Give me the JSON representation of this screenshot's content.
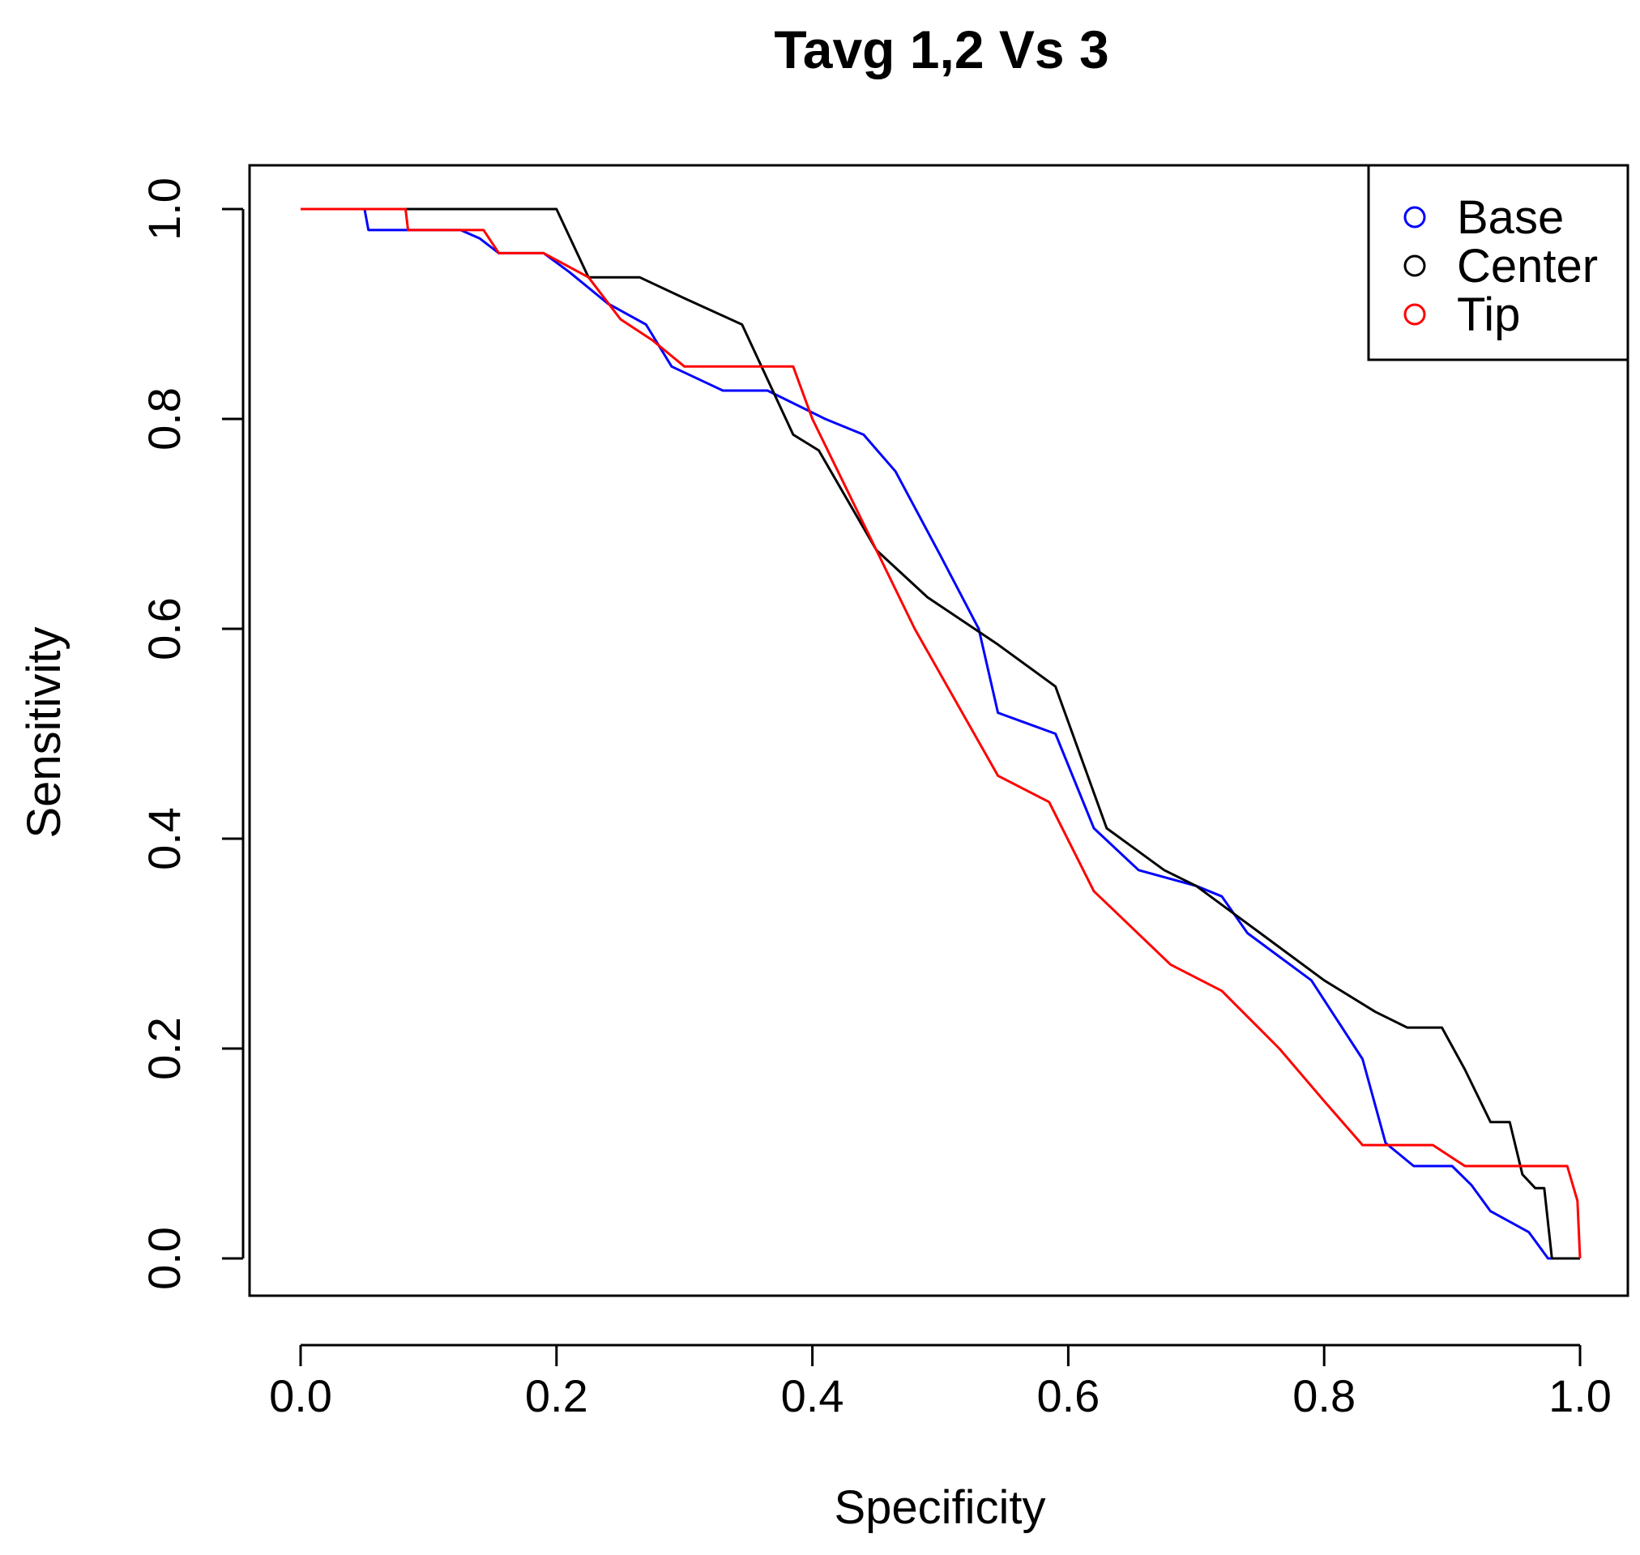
{
  "chart_data": {
    "type": "line",
    "title": "Tavg 1,2 Vs 3",
    "xlabel": "Specificity",
    "ylabel": "Sensitivity",
    "xlim": [
      0.0,
      1.0
    ],
    "ylim": [
      0.0,
      1.0
    ],
    "x_ticks": [
      "0.0",
      "0.2",
      "0.4",
      "0.6",
      "0.8",
      "1.0"
    ],
    "y_ticks": [
      "0.0",
      "0.2",
      "0.4",
      "0.6",
      "0.8",
      "1.0"
    ],
    "grid": false,
    "legend_position": "top-right",
    "series": [
      {
        "name": "Base",
        "color": "#0000ff",
        "points": [
          [
            0.0,
            1.0
          ],
          [
            0.05,
            1.0
          ],
          [
            0.053,
            0.98
          ],
          [
            0.125,
            0.98
          ],
          [
            0.14,
            0.972
          ],
          [
            0.155,
            0.958
          ],
          [
            0.19,
            0.958
          ],
          [
            0.21,
            0.94
          ],
          [
            0.24,
            0.91
          ],
          [
            0.27,
            0.89
          ],
          [
            0.29,
            0.85
          ],
          [
            0.33,
            0.827
          ],
          [
            0.365,
            0.827
          ],
          [
            0.41,
            0.8
          ],
          [
            0.44,
            0.785
          ],
          [
            0.465,
            0.75
          ],
          [
            0.5,
            0.67
          ],
          [
            0.53,
            0.6
          ],
          [
            0.545,
            0.52
          ],
          [
            0.59,
            0.5
          ],
          [
            0.62,
            0.41
          ],
          [
            0.655,
            0.37
          ],
          [
            0.7,
            0.355
          ],
          [
            0.72,
            0.345
          ],
          [
            0.74,
            0.31
          ],
          [
            0.79,
            0.265
          ],
          [
            0.83,
            0.19
          ],
          [
            0.848,
            0.11
          ],
          [
            0.87,
            0.088
          ],
          [
            0.9,
            0.088
          ],
          [
            0.915,
            0.07
          ],
          [
            0.93,
            0.045
          ],
          [
            0.96,
            0.025
          ],
          [
            0.975,
            0.0
          ],
          [
            1.0,
            0.0
          ]
        ]
      },
      {
        "name": "Center",
        "color": "#000000",
        "points": [
          [
            0.0,
            1.0
          ],
          [
            0.2,
            1.0
          ],
          [
            0.225,
            0.935
          ],
          [
            0.265,
            0.935
          ],
          [
            0.3,
            0.915
          ],
          [
            0.345,
            0.89
          ],
          [
            0.385,
            0.785
          ],
          [
            0.405,
            0.77
          ],
          [
            0.45,
            0.675
          ],
          [
            0.49,
            0.63
          ],
          [
            0.545,
            0.585
          ],
          [
            0.59,
            0.545
          ],
          [
            0.63,
            0.41
          ],
          [
            0.675,
            0.37
          ],
          [
            0.7,
            0.355
          ],
          [
            0.75,
            0.31
          ],
          [
            0.8,
            0.265
          ],
          [
            0.84,
            0.235
          ],
          [
            0.865,
            0.22
          ],
          [
            0.892,
            0.22
          ],
          [
            0.91,
            0.18
          ],
          [
            0.93,
            0.13
          ],
          [
            0.945,
            0.13
          ],
          [
            0.955,
            0.08
          ],
          [
            0.965,
            0.067
          ],
          [
            0.972,
            0.067
          ],
          [
            0.978,
            0.0
          ],
          [
            1.0,
            0.0
          ]
        ]
      },
      {
        "name": "Tip",
        "color": "#ff0000",
        "points": [
          [
            0.0,
            1.0
          ],
          [
            0.082,
            1.0
          ],
          [
            0.084,
            0.98
          ],
          [
            0.143,
            0.98
          ],
          [
            0.155,
            0.958
          ],
          [
            0.19,
            0.958
          ],
          [
            0.225,
            0.935
          ],
          [
            0.25,
            0.895
          ],
          [
            0.275,
            0.875
          ],
          [
            0.3,
            0.85
          ],
          [
            0.385,
            0.85
          ],
          [
            0.4,
            0.8
          ],
          [
            0.44,
            0.7
          ],
          [
            0.48,
            0.6
          ],
          [
            0.545,
            0.46
          ],
          [
            0.585,
            0.435
          ],
          [
            0.62,
            0.35
          ],
          [
            0.68,
            0.28
          ],
          [
            0.72,
            0.255
          ],
          [
            0.765,
            0.2
          ],
          [
            0.8,
            0.15
          ],
          [
            0.83,
            0.108
          ],
          [
            0.885,
            0.108
          ],
          [
            0.91,
            0.088
          ],
          [
            0.99,
            0.088
          ],
          [
            0.998,
            0.055
          ],
          [
            1.0,
            0.0
          ]
        ]
      }
    ]
  }
}
